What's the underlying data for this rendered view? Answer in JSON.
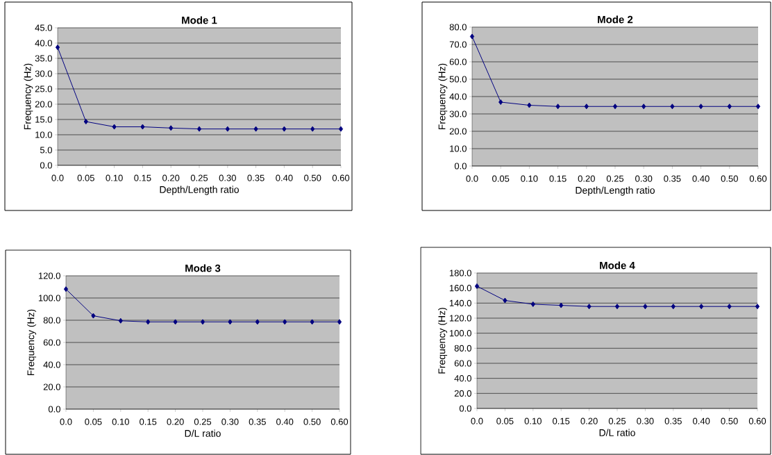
{
  "chart_data": [
    {
      "type": "line",
      "title": "Mode 1",
      "xlabel": "Depth/Length ratio",
      "ylabel": "Frequency (Hz)",
      "categories": [
        "0.0",
        "0.05",
        "0.10",
        "0.15",
        "0.20",
        "0.25",
        "0.30",
        "0.35",
        "0.40",
        "0.50",
        "0.60"
      ],
      "series": [
        {
          "color": "#000080",
          "values": [
            38.6,
            14.3,
            12.6,
            12.6,
            12.2,
            11.9,
            11.9,
            11.9,
            11.9,
            11.9,
            11.9
          ]
        }
      ],
      "ylim": [
        0,
        45
      ],
      "yticks": [
        {
          "value": 0,
          "label": "0.0"
        },
        {
          "value": 5,
          "label": "5.0"
        },
        {
          "value": 10,
          "label": "10.0"
        },
        {
          "value": 15,
          "label": "15.0"
        },
        {
          "value": 20,
          "label": "20.0"
        },
        {
          "value": 25,
          "label": "25.0"
        },
        {
          "value": 30,
          "label": "30.0"
        },
        {
          "value": 35,
          "label": "35.0"
        },
        {
          "value": 40,
          "label": "40.0"
        },
        {
          "value": 45,
          "label": "45.0"
        }
      ],
      "grid": "y",
      "marker": "diamond",
      "line_style": "solid"
    },
    {
      "type": "line",
      "title": "Mode 2",
      "xlabel": "Depth/Length ratio",
      "ylabel": "Frequency (Hz)",
      "categories": [
        "0.0",
        "0.05",
        "0.10",
        "0.15",
        "0.20",
        "0.25",
        "0.30",
        "0.35",
        "0.40",
        "0.50",
        "0.60"
      ],
      "series": [
        {
          "color": "#000080",
          "values": [
            74.6,
            36.8,
            35.0,
            34.3,
            34.3,
            34.3,
            34.3,
            34.3,
            34.3,
            34.3,
            34.3
          ]
        }
      ],
      "ylim": [
        0,
        80
      ],
      "yticks": [
        {
          "value": 0,
          "label": "0.0"
        },
        {
          "value": 10,
          "label": "10.0"
        },
        {
          "value": 20,
          "label": "20.0"
        },
        {
          "value": 30,
          "label": "30.0"
        },
        {
          "value": 40,
          "label": "40.0"
        },
        {
          "value": 50,
          "label": "50.0"
        },
        {
          "value": 60,
          "label": "60.0"
        },
        {
          "value": 70,
          "label": "70.0"
        },
        {
          "value": 80,
          "label": "80.0"
        }
      ],
      "grid": "y",
      "marker": "diamond",
      "line_style": "solid"
    },
    {
      "type": "line",
      "title": "Mode 3",
      "xlabel": "D/L ratio",
      "ylabel": "Frequency (Hz)",
      "categories": [
        "0.0",
        "0.05",
        "0.10",
        "0.15",
        "0.20",
        "0.25",
        "0.30",
        "0.35",
        "0.40",
        "0.50",
        "0.60"
      ],
      "series": [
        {
          "color": "#000080",
          "values": [
            108,
            84,
            79.5,
            78.5,
            78.5,
            78.5,
            78.5,
            78.5,
            78.5,
            78.5,
            78.5
          ]
        }
      ],
      "ylim": [
        0,
        120
      ],
      "yticks": [
        {
          "value": 0,
          "label": "0.0"
        },
        {
          "value": 20,
          "label": "20.0"
        },
        {
          "value": 40,
          "label": "40.0"
        },
        {
          "value": 60,
          "label": "60.0"
        },
        {
          "value": 80,
          "label": "80.0"
        },
        {
          "value": 100,
          "label": "100.0"
        },
        {
          "value": 120,
          "label": "120.0"
        }
      ],
      "grid": "y",
      "marker": "diamond",
      "line_style": "solid"
    },
    {
      "type": "line",
      "title": "Mode 4",
      "xlabel": "D/L ratio",
      "ylabel": "Frequency (Hz)",
      "categories": [
        "0.0",
        "0.05",
        "0.10",
        "0.15",
        "0.20",
        "0.25",
        "0.30",
        "0.35",
        "0.40",
        "0.50",
        "0.60"
      ],
      "series": [
        {
          "color": "#000080",
          "values": [
            162.5,
            143.5,
            138.5,
            137,
            135.5,
            135.5,
            135.5,
            135.5,
            135.5,
            135.5,
            135.5
          ]
        }
      ],
      "ylim": [
        0,
        180
      ],
      "yticks": [
        {
          "value": 0,
          "label": "0.0"
        },
        {
          "value": 20,
          "label": "20.0"
        },
        {
          "value": 40,
          "label": "40.0"
        },
        {
          "value": 60,
          "label": "60.0"
        },
        {
          "value": 80,
          "label": "80.0"
        },
        {
          "value": 100,
          "label": "100.0"
        },
        {
          "value": 120,
          "label": "120.0"
        },
        {
          "value": 140,
          "label": "140.0"
        },
        {
          "value": 160,
          "label": "160.0"
        },
        {
          "value": 180,
          "label": "180.0"
        }
      ],
      "grid": "y",
      "marker": "diamond",
      "line_style": "solid"
    }
  ]
}
